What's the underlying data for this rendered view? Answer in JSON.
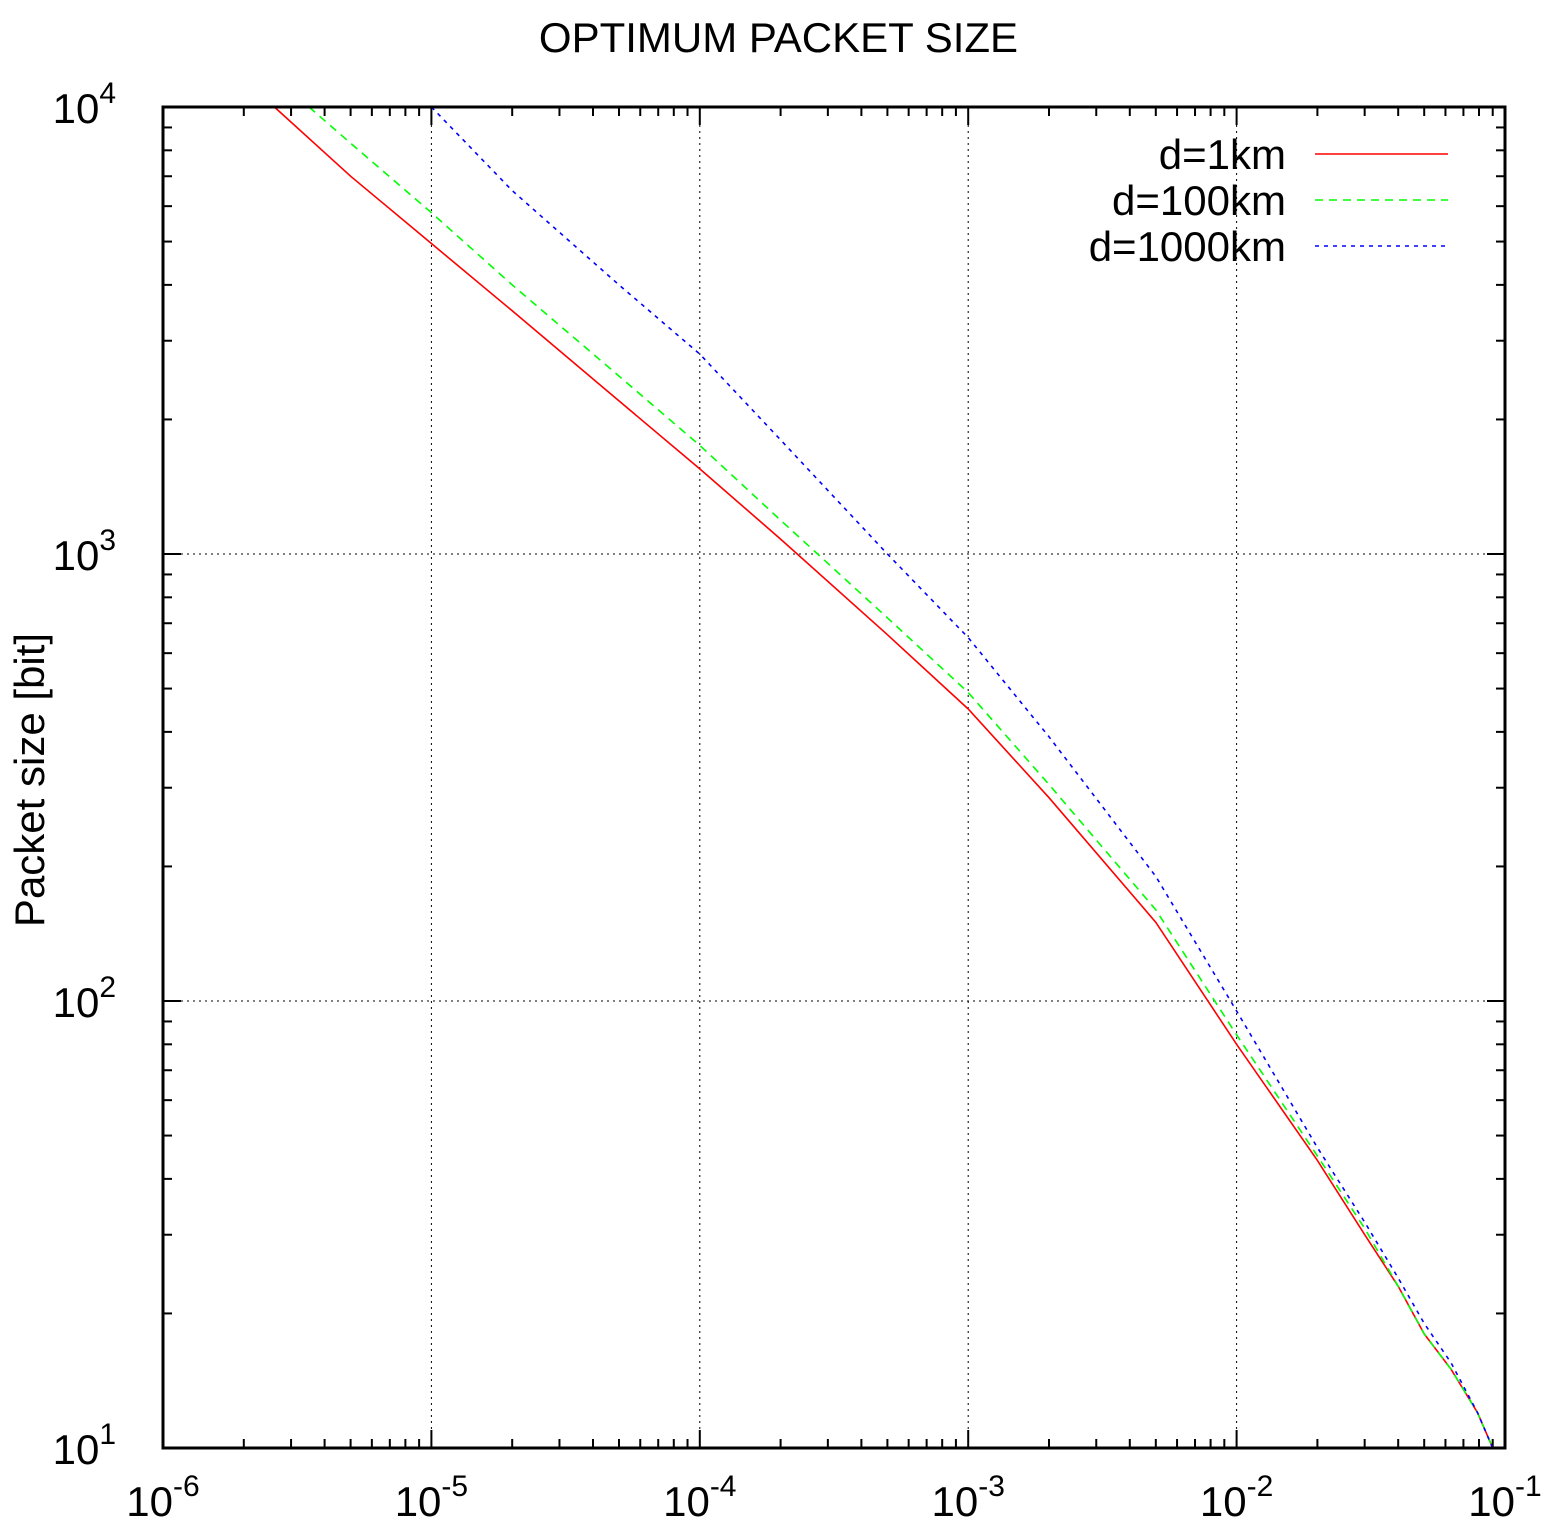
{
  "chart_data": {
    "type": "line",
    "title": "OPTIMUM PACKET SIZE",
    "xlabel": "",
    "ylabel": "Packet size [bit]",
    "xscale": "log",
    "yscale": "log",
    "xlim": [
      1e-06,
      0.1
    ],
    "ylim": [
      10,
      10000
    ],
    "grid": true,
    "legend_position": "top-right",
    "x_ticks": [
      {
        "value": 1e-06,
        "base": "10",
        "exp": "-6"
      },
      {
        "value": 1e-05,
        "base": "10",
        "exp": "-5"
      },
      {
        "value": 0.0001,
        "base": "10",
        "exp": "-4"
      },
      {
        "value": 0.001,
        "base": "10",
        "exp": "-3"
      },
      {
        "value": 0.01,
        "base": "10",
        "exp": "-2"
      },
      {
        "value": 0.1,
        "base": "10",
        "exp": "-1"
      }
    ],
    "y_ticks": [
      {
        "value": 10,
        "base": "10",
        "exp": "1"
      },
      {
        "value": 100,
        "base": "10",
        "exp": "2"
      },
      {
        "value": 1000,
        "base": "10",
        "exp": "3"
      },
      {
        "value": 10000,
        "base": "10",
        "exp": "4"
      }
    ],
    "series": [
      {
        "name": "d=1km",
        "color": "#ff0000",
        "dash": "solid",
        "x": [
          2.6e-06,
          5e-06,
          1e-05,
          2e-05,
          5e-05,
          0.0001,
          0.0002,
          0.0005,
          0.001,
          0.002,
          0.005,
          0.01,
          0.02,
          0.03,
          0.04,
          0.05,
          0.063,
          0.079,
          0.09
        ],
        "y": [
          10000,
          7000,
          4950,
          3500,
          2200,
          1550,
          1080,
          660,
          450,
          285,
          150,
          80,
          44,
          30,
          23,
          18,
          15,
          12,
          10
        ]
      },
      {
        "name": "d=100km",
        "color": "#00ff00",
        "dash": "8,6",
        "x": [
          3.5e-06,
          5e-06,
          1e-05,
          2e-05,
          5e-05,
          0.0001,
          0.0002,
          0.0005,
          0.001,
          0.002,
          0.005,
          0.01,
          0.02,
          0.03,
          0.04,
          0.05,
          0.063,
          0.079,
          0.09
        ],
        "y": [
          10000,
          8300,
          5800,
          4000,
          2500,
          1750,
          1190,
          720,
          490,
          305,
          160,
          84,
          45,
          31,
          23,
          18,
          15,
          12,
          10
        ]
      },
      {
        "name": "d=1000km",
        "color": "#0000ff",
        "dash": "4,5",
        "x": [
          1e-05,
          2e-05,
          5e-05,
          0.0001,
          0.0002,
          0.0005,
          0.001,
          0.002,
          0.005,
          0.01,
          0.02,
          0.03,
          0.04,
          0.05,
          0.063,
          0.079,
          0.09
        ],
        "y": [
          10000,
          6500,
          4000,
          2800,
          1800,
          1000,
          650,
          390,
          190,
          95,
          47,
          32,
          24,
          19,
          15.5,
          12,
          10
        ]
      }
    ]
  }
}
